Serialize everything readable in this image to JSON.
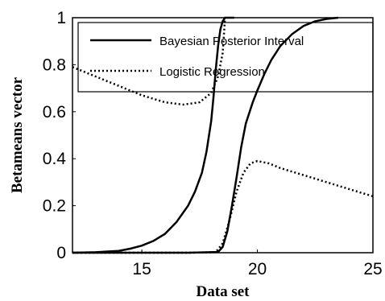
{
  "chart_data": {
    "type": "line",
    "title": "",
    "xlabel": "Data set",
    "ylabel": "Betameans vector",
    "xlim": [
      12,
      25
    ],
    "ylim": [
      0,
      1
    ],
    "x_ticks": [
      "15",
      "20",
      "25"
    ],
    "y_ticks": [
      "0",
      "0.2",
      "0.4",
      "0.6",
      "0.8",
      "1"
    ],
    "grid": false,
    "legend_position": "top",
    "legend": [
      {
        "label": "Bayesian Posterior Interval",
        "style": "solid"
      },
      {
        "label": "Logistic Regression",
        "style": "dotted"
      }
    ],
    "series": [
      {
        "name": "Bayesian Posterior Interval",
        "style": "solid",
        "color": "#000000",
        "x": [
          12,
          13,
          14,
          14.5,
          15,
          15.5,
          16,
          16.5,
          17,
          17.3,
          17.6,
          17.8,
          18,
          18.1,
          18.2,
          18.3,
          18.4,
          18.5,
          18.6,
          18.8,
          19
        ],
        "y": [
          0,
          0.002,
          0.008,
          0.017,
          0.03,
          0.05,
          0.08,
          0.13,
          0.2,
          0.26,
          0.34,
          0.43,
          0.56,
          0.66,
          0.78,
          0.88,
          0.95,
          0.985,
          1.0,
          1.0,
          1.0
        ]
      },
      {
        "name": "Bayesian Posterior Interval",
        "style": "solid",
        "color": "#000000",
        "x": [
          12,
          17,
          18.3,
          18.5,
          18.7,
          18.9,
          19.1,
          19.3,
          19.5,
          19.8,
          20,
          20.3,
          20.6,
          21,
          21.5,
          22,
          22.5,
          23,
          23.5
        ],
        "y": [
          0,
          0,
          0.003,
          0.025,
          0.09,
          0.2,
          0.32,
          0.45,
          0.55,
          0.64,
          0.69,
          0.76,
          0.82,
          0.88,
          0.93,
          0.965,
          0.985,
          0.995,
          1.0
        ]
      },
      {
        "name": "Logistic Regression",
        "style": "dotted",
        "color": "#000000",
        "x": [
          12,
          13,
          14,
          15,
          16,
          16.8,
          17.5,
          18,
          18.3,
          18.5,
          18.6
        ],
        "y": [
          0.79,
          0.75,
          0.71,
          0.67,
          0.64,
          0.63,
          0.64,
          0.68,
          0.75,
          0.85,
          1.0
        ]
      },
      {
        "name": "Logistic Regression",
        "style": "dotted",
        "color": "#000000",
        "x": [
          12,
          15,
          17,
          18.2,
          18.5,
          18.8,
          19.1,
          19.4,
          19.7,
          20,
          20.5,
          21,
          22,
          23,
          24,
          25
        ],
        "y": [
          0,
          0,
          0,
          0.002,
          0.04,
          0.14,
          0.26,
          0.34,
          0.38,
          0.39,
          0.38,
          0.36,
          0.33,
          0.3,
          0.27,
          0.24
        ]
      }
    ]
  }
}
